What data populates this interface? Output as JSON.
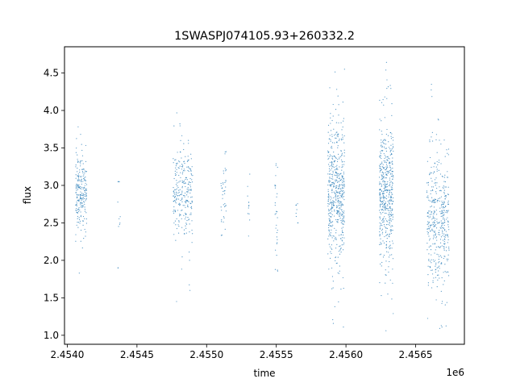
{
  "chart_data": {
    "type": "scatter",
    "title": "1SWASPJ074105.93+260332.2",
    "xlabel": "time",
    "ylabel": "flux",
    "x_offset_label": "1e6",
    "xlim": [
      2.45398,
      2.45685
    ],
    "ylim": [
      0.88,
      4.85
    ],
    "x_ticks": [
      2.454,
      2.4545,
      2.455,
      2.4555,
      2.456,
      2.4565
    ],
    "x_tick_labels": [
      "2.4540",
      "2.4545",
      "2.4550",
      "2.4555",
      "2.4560",
      "2.4565"
    ],
    "y_ticks": [
      1.0,
      1.5,
      2.0,
      2.5,
      3.0,
      3.5,
      4.0,
      4.5
    ],
    "y_tick_labels": [
      "1.0",
      "1.5",
      "2.0",
      "2.5",
      "3.0",
      "3.5",
      "4.0",
      "4.5"
    ],
    "marker_color": "#1f77b4",
    "grid": false,
    "series": [
      {
        "clusters": [
          {
            "x_range": [
              2.45406,
              2.45414
            ],
            "y_center": 2.9,
            "y_spread": 0.28,
            "y_min": 1.6,
            "y_max": 3.85,
            "density": 220
          },
          {
            "x_range": [
              2.45436,
              2.45438
            ],
            "y_center": 2.5,
            "y_spread": 0.35,
            "y_min": 1.9,
            "y_max": 3.05,
            "density": 12
          },
          {
            "x_range": [
              2.45476,
              2.4549
            ],
            "y_center": 2.9,
            "y_spread": 0.3,
            "y_min": 1.35,
            "y_max": 4.15,
            "density": 260
          },
          {
            "x_range": [
              2.4551,
              2.45514
            ],
            "y_center": 2.85,
            "y_spread": 0.25,
            "y_min": 2.3,
            "y_max": 3.45,
            "density": 40
          },
          {
            "x_range": [
              2.45529,
              2.45531
            ],
            "y_center": 2.7,
            "y_spread": 0.25,
            "y_min": 2.25,
            "y_max": 3.15,
            "density": 12
          },
          {
            "x_range": [
              2.45549,
              2.45551
            ],
            "y_center": 2.55,
            "y_spread": 0.4,
            "y_min": 1.65,
            "y_max": 3.45,
            "density": 30
          },
          {
            "x_range": [
              2.45564,
              2.45566
            ],
            "y_center": 2.65,
            "y_spread": 0.15,
            "y_min": 2.5,
            "y_max": 2.85,
            "density": 8
          },
          {
            "x_range": [
              2.45587,
              2.45599
            ],
            "y_center": 2.9,
            "y_spread": 0.45,
            "y_min": 1.1,
            "y_max": 4.6,
            "density": 520
          },
          {
            "x_range": [
              2.45624,
              2.45634
            ],
            "y_center": 2.85,
            "y_spread": 0.45,
            "y_min": 1.05,
            "y_max": 4.65,
            "density": 480
          },
          {
            "x_range": [
              2.45658,
              2.45674
            ],
            "y_center": 2.55,
            "y_spread": 0.42,
            "y_min": 1.05,
            "y_max": 4.5,
            "density": 420
          }
        ]
      }
    ]
  }
}
